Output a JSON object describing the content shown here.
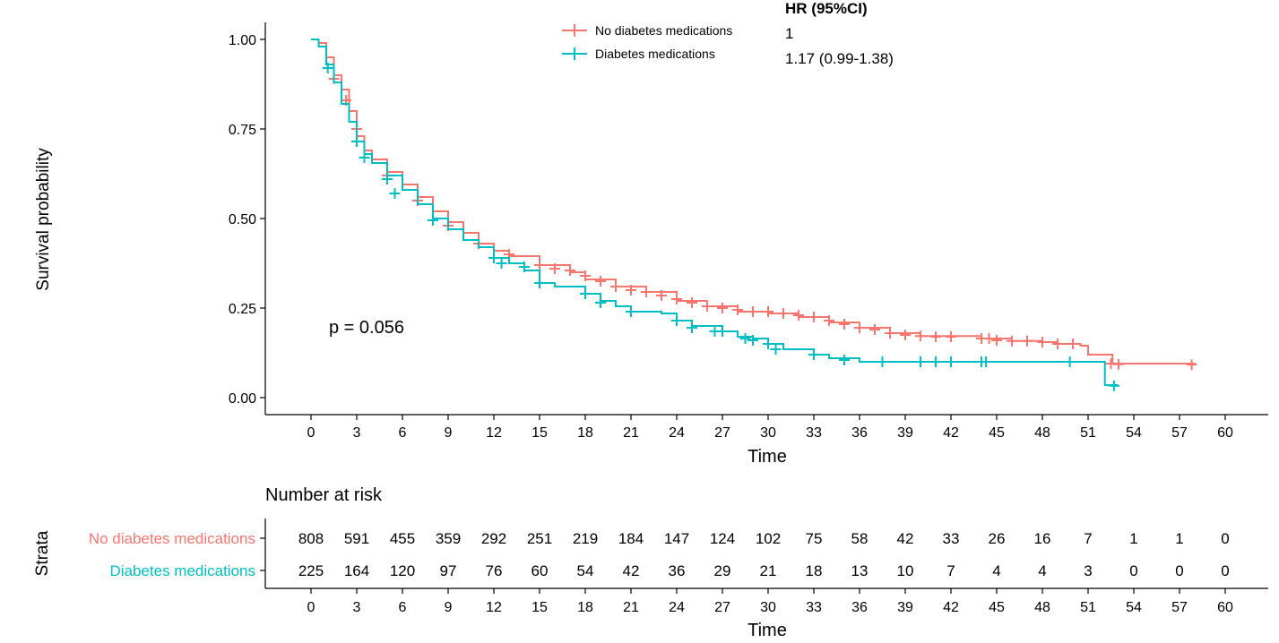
{
  "chart_data": {
    "type": "line",
    "subtype": "kaplan-meier",
    "title": "",
    "xlabel": "Time",
    "ylabel": "Survival probability",
    "xlim": [
      0,
      60
    ],
    "ylim": [
      0,
      1
    ],
    "xticks": [
      0,
      3,
      6,
      9,
      12,
      15,
      18,
      21,
      24,
      27,
      30,
      33,
      36,
      39,
      42,
      45,
      48,
      51,
      54,
      57,
      60
    ],
    "yticks": [
      "0.00",
      "0.25",
      "0.50",
      "0.75",
      "1.00"
    ],
    "grid": false,
    "legend": {
      "placement": "top",
      "entries": [
        "No diabetes medications",
        "Diabetes medications"
      ]
    },
    "annotation": "p = 0.056",
    "hazard_ratio": {
      "title": "HR (95%CI)",
      "values": [
        "1",
        "1.17 (0.99-1.38)"
      ]
    },
    "colors": {
      "No diabetes medications": "#F8766D",
      "Diabetes medications": "#00BFC4"
    },
    "series": [
      {
        "name": "No diabetes medications",
        "points": [
          [
            0,
            1.0
          ],
          [
            0.5,
            0.99
          ],
          [
            1,
            0.95
          ],
          [
            1.5,
            0.9
          ],
          [
            2,
            0.86
          ],
          [
            2.5,
            0.8
          ],
          [
            3,
            0.73
          ],
          [
            3.5,
            0.69
          ],
          [
            4,
            0.665
          ],
          [
            5,
            0.63
          ],
          [
            6,
            0.595
          ],
          [
            7,
            0.56
          ],
          [
            8,
            0.52
          ],
          [
            9,
            0.49
          ],
          [
            10,
            0.46
          ],
          [
            11,
            0.43
          ],
          [
            12,
            0.41
          ],
          [
            13,
            0.395
          ],
          [
            15,
            0.37
          ],
          [
            17,
            0.35
          ],
          [
            18,
            0.33
          ],
          [
            20,
            0.31
          ],
          [
            22,
            0.295
          ],
          [
            24,
            0.27
          ],
          [
            26,
            0.255
          ],
          [
            28,
            0.24
          ],
          [
            30,
            0.235
          ],
          [
            32,
            0.225
          ],
          [
            34,
            0.21
          ],
          [
            36,
            0.195
          ],
          [
            38,
            0.18
          ],
          [
            40,
            0.172
          ],
          [
            44,
            0.165
          ],
          [
            46,
            0.158
          ],
          [
            48,
            0.155
          ],
          [
            49,
            0.15
          ],
          [
            50.5,
            0.145
          ],
          [
            51,
            0.12
          ],
          [
            52.5,
            0.12
          ],
          [
            52.6,
            0.095
          ],
          [
            58,
            0.093
          ]
        ],
        "censors": [
          [
            1.5,
            0.89
          ],
          [
            2.3,
            0.83
          ],
          [
            3,
            0.75
          ],
          [
            5,
            0.62
          ],
          [
            7,
            0.55
          ],
          [
            9,
            0.48
          ],
          [
            11,
            0.43
          ],
          [
            13,
            0.4
          ],
          [
            15,
            0.37
          ],
          [
            16,
            0.36
          ],
          [
            17,
            0.355
          ],
          [
            18,
            0.34
          ],
          [
            19,
            0.325
          ],
          [
            20,
            0.31
          ],
          [
            21,
            0.3
          ],
          [
            22,
            0.295
          ],
          [
            23,
            0.285
          ],
          [
            24,
            0.275
          ],
          [
            25,
            0.265
          ],
          [
            26,
            0.255
          ],
          [
            27,
            0.25
          ],
          [
            28,
            0.245
          ],
          [
            29,
            0.24
          ],
          [
            30,
            0.24
          ],
          [
            31,
            0.235
          ],
          [
            32,
            0.23
          ],
          [
            33,
            0.225
          ],
          [
            34,
            0.215
          ],
          [
            35,
            0.205
          ],
          [
            36,
            0.195
          ],
          [
            37,
            0.19
          ],
          [
            38,
            0.18
          ],
          [
            39,
            0.175
          ],
          [
            40,
            0.172
          ],
          [
            41,
            0.17
          ],
          [
            42,
            0.17
          ],
          [
            44,
            0.165
          ],
          [
            44.5,
            0.165
          ],
          [
            45,
            0.16
          ],
          [
            46,
            0.158
          ],
          [
            47,
            0.158
          ],
          [
            48,
            0.155
          ],
          [
            49,
            0.15
          ],
          [
            50,
            0.15
          ],
          [
            52.5,
            0.095
          ],
          [
            53,
            0.093
          ],
          [
            57.8,
            0.092
          ]
        ]
      },
      {
        "name": "Diabetes medications",
        "points": [
          [
            0,
            1.0
          ],
          [
            0.5,
            0.98
          ],
          [
            1,
            0.93
          ],
          [
            1.5,
            0.88
          ],
          [
            2,
            0.82
          ],
          [
            2.5,
            0.77
          ],
          [
            3,
            0.715
          ],
          [
            3.5,
            0.68
          ],
          [
            4,
            0.655
          ],
          [
            5,
            0.62
          ],
          [
            6,
            0.58
          ],
          [
            7,
            0.54
          ],
          [
            8,
            0.5
          ],
          [
            9,
            0.47
          ],
          [
            10,
            0.44
          ],
          [
            11,
            0.42
          ],
          [
            12,
            0.39
          ],
          [
            13,
            0.375
          ],
          [
            14,
            0.355
          ],
          [
            15,
            0.32
          ],
          [
            16,
            0.31
          ],
          [
            18,
            0.29
          ],
          [
            19,
            0.27
          ],
          [
            20,
            0.255
          ],
          [
            21,
            0.24
          ],
          [
            23,
            0.235
          ],
          [
            24,
            0.215
          ],
          [
            25,
            0.2
          ],
          [
            27,
            0.185
          ],
          [
            28,
            0.17
          ],
          [
            29,
            0.165
          ],
          [
            30,
            0.15
          ],
          [
            31,
            0.135
          ],
          [
            33,
            0.12
          ],
          [
            34,
            0.11
          ],
          [
            36,
            0.1
          ],
          [
            52,
            0.1
          ],
          [
            52.1,
            0.035
          ],
          [
            52.9,
            0.033
          ]
        ],
        "censors": [
          [
            1.1,
            0.92
          ],
          [
            3,
            0.715
          ],
          [
            3.5,
            0.67
          ],
          [
            5,
            0.61
          ],
          [
            5.5,
            0.57
          ],
          [
            8,
            0.495
          ],
          [
            12,
            0.39
          ],
          [
            12.5,
            0.375
          ],
          [
            14,
            0.365
          ],
          [
            15,
            0.32
          ],
          [
            18,
            0.29
          ],
          [
            19,
            0.265
          ],
          [
            21,
            0.24
          ],
          [
            24,
            0.215
          ],
          [
            25,
            0.195
          ],
          [
            26.5,
            0.185
          ],
          [
            27,
            0.185
          ],
          [
            28.5,
            0.165
          ],
          [
            29,
            0.16
          ],
          [
            30,
            0.15
          ],
          [
            30.5,
            0.135
          ],
          [
            33,
            0.12
          ],
          [
            35,
            0.105
          ],
          [
            37.5,
            0.1
          ],
          [
            40,
            0.1
          ],
          [
            41,
            0.1
          ],
          [
            42,
            0.1
          ],
          [
            44,
            0.1
          ],
          [
            44.3,
            0.1
          ],
          [
            49.8,
            0.1
          ],
          [
            52.7,
            0.033
          ]
        ]
      }
    ]
  },
  "risk_table": {
    "title": "Number at risk",
    "ylabel": "Strata",
    "xlabel": "Time",
    "times": [
      0,
      3,
      6,
      9,
      12,
      15,
      18,
      21,
      24,
      27,
      30,
      33,
      36,
      39,
      42,
      45,
      48,
      51,
      54,
      57,
      60
    ],
    "rows": [
      {
        "name": "No diabetes medications",
        "color": "#F8766D",
        "values": [
          808,
          591,
          455,
          359,
          292,
          251,
          219,
          184,
          147,
          124,
          102,
          75,
          58,
          42,
          33,
          26,
          16,
          7,
          1,
          1,
          0
        ]
      },
      {
        "name": "Diabetes medications",
        "color": "#00BFC4",
        "values": [
          225,
          164,
          120,
          97,
          76,
          60,
          54,
          42,
          36,
          29,
          21,
          18,
          13,
          10,
          7,
          4,
          4,
          3,
          0,
          0,
          0
        ]
      }
    ]
  }
}
